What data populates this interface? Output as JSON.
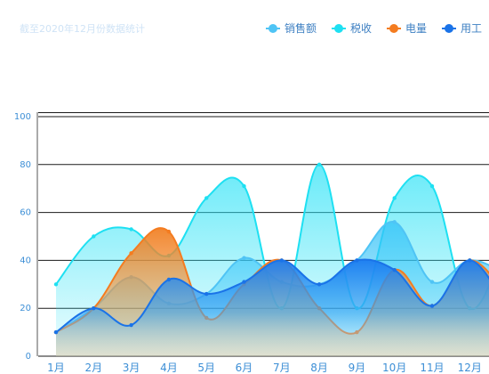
{
  "chart_data": {
    "type": "area",
    "title": "截至2020年12月份数据统计",
    "categories": [
      "1月",
      "2月",
      "3月",
      "4月",
      "5月",
      "6月",
      "7月",
      "8月",
      "9月",
      "10月",
      "11月",
      "12月"
    ],
    "y_ticks": [
      0,
      20,
      40,
      60,
      80,
      100
    ],
    "ylim": [
      0,
      100
    ],
    "grid": true,
    "legend_position": "top-right",
    "series": [
      {
        "name": "销售额",
        "color": "#4fc4f5",
        "values": [
          10,
          20,
          33,
          22,
          26,
          41,
          31,
          30,
          40,
          56,
          31,
          40
        ]
      },
      {
        "name": "税收",
        "color": "#1ee0f2",
        "values": [
          30,
          50,
          53,
          42,
          66,
          71,
          20,
          80,
          20,
          66,
          71,
          20
        ]
      },
      {
        "name": "电量",
        "color": "#f47c20",
        "values": [
          10,
          20,
          43,
          52,
          16,
          30,
          40,
          20,
          10,
          36,
          21,
          40
        ]
      },
      {
        "name": "用工",
        "color": "#1a73e8",
        "values": [
          10,
          20,
          13,
          32,
          26,
          31,
          40,
          30,
          40,
          36,
          21,
          40
        ]
      }
    ]
  }
}
